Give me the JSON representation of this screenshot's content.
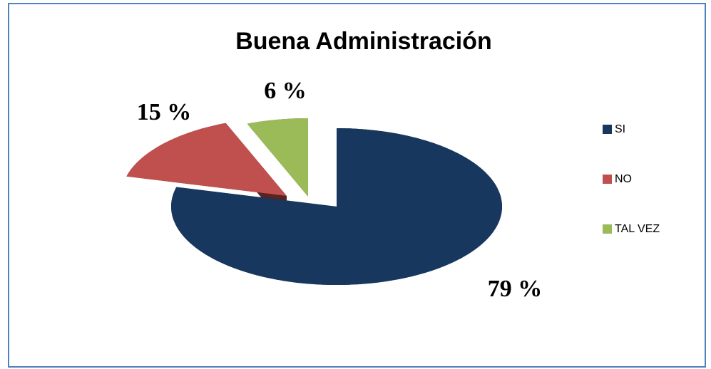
{
  "chart_data": {
    "type": "pie",
    "title": "Buena Administración",
    "categories": [
      "SI",
      "NO",
      "TAL VEZ"
    ],
    "values": [
      79,
      15,
      6
    ],
    "value_labels": [
      "79 %",
      "15 %",
      "6 %"
    ],
    "colors": [
      "#17375e",
      "#c0504d",
      "#9bbb59"
    ],
    "legend": "right"
  }
}
